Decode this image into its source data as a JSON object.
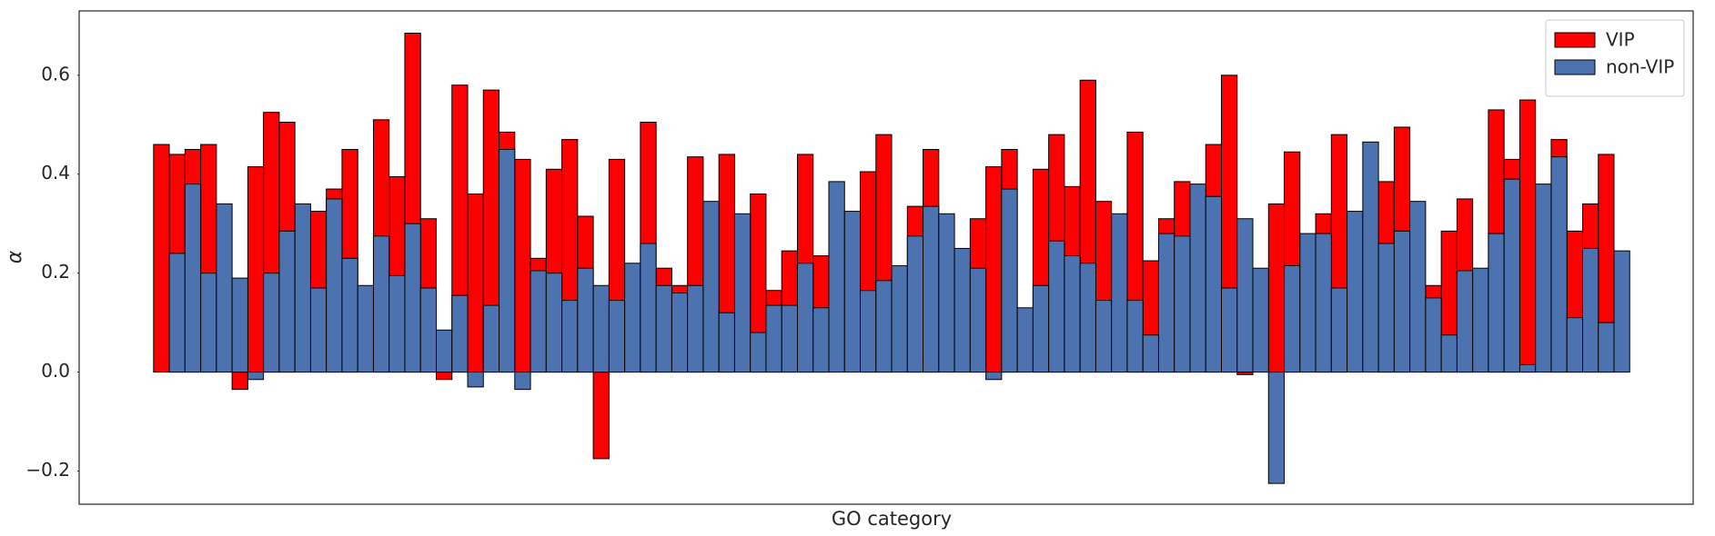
{
  "chart_data": {
    "type": "bar",
    "overlay": true,
    "x_label": "GO category",
    "y_label": "α",
    "ylim": [
      -0.267,
      0.73
    ],
    "yticks": [
      {
        "value": -0.2,
        "label": "−0.2"
      },
      {
        "value": 0,
        "label": "0.0"
      },
      0.2,
      0.4,
      0.6
    ],
    "grid": false,
    "legend": "upper right",
    "series": [
      {
        "name": "VIP",
        "color": "#ff0000",
        "values": [
          0.46,
          0.44,
          0.45,
          0.46,
          null,
          -0.035,
          0.415,
          0.525,
          0.505,
          null,
          0.325,
          0.37,
          0.45,
          null,
          0.51,
          0.395,
          0.685,
          0.31,
          -0.015,
          0.58,
          0.36,
          0.57,
          0.485,
          0.43,
          0.23,
          0.41,
          0.47,
          0.315,
          -0.175,
          0.43,
          null,
          0.505,
          0.21,
          0.175,
          0.435,
          null,
          0.44,
          null,
          0.36,
          0.165,
          0.245,
          0.44,
          0.235,
          null,
          null,
          0.405,
          0.48,
          null,
          0.335,
          0.45,
          null,
          null,
          0.31,
          0.415,
          0.45,
          null,
          0.41,
          0.48,
          0.375,
          0.59,
          0.345,
          null,
          0.485,
          0.225,
          0.31,
          0.385,
          null,
          0.46,
          0.6,
          -0.005,
          null,
          0.34,
          0.445,
          null,
          0.32,
          0.48,
          null,
          null,
          0.385,
          0.495,
          null,
          0.175,
          0.285,
          0.35,
          null,
          0.53,
          0.43,
          0.55,
          null,
          0.47,
          0.285,
          0.34,
          0.44,
          null
        ]
      },
      {
        "name": "non-VIP",
        "color": "#4c72b0",
        "values": [
          null,
          0.24,
          0.38,
          0.2,
          0.34,
          0.19,
          -0.015,
          0.2,
          0.285,
          0.34,
          0.17,
          0.35,
          0.23,
          0.175,
          0.275,
          0.195,
          0.3,
          0.17,
          0.085,
          0.155,
          -0.03,
          0.135,
          0.45,
          -0.035,
          0.205,
          0.2,
          0.145,
          0.21,
          0.175,
          0.145,
          0.22,
          0.26,
          0.175,
          0.16,
          0.175,
          0.345,
          0.12,
          0.32,
          0.08,
          0.135,
          0.135,
          0.22,
          0.13,
          0.385,
          0.325,
          0.165,
          0.185,
          0.215,
          0.275,
          0.335,
          0.32,
          0.25,
          0.21,
          -0.015,
          0.37,
          0.13,
          0.175,
          0.265,
          0.235,
          0.22,
          0.145,
          0.32,
          0.145,
          0.075,
          0.28,
          0.275,
          0.38,
          0.355,
          0.17,
          0.31,
          0.21,
          -0.225,
          0.215,
          0.28,
          0.28,
          0.17,
          0.325,
          0.465,
          0.26,
          0.285,
          0.345,
          0.15,
          0.075,
          0.205,
          0.21,
          0.28,
          0.39,
          0.015,
          0.38,
          0.435,
          0.11,
          0.25,
          0.1,
          0.245
        ]
      }
    ]
  }
}
